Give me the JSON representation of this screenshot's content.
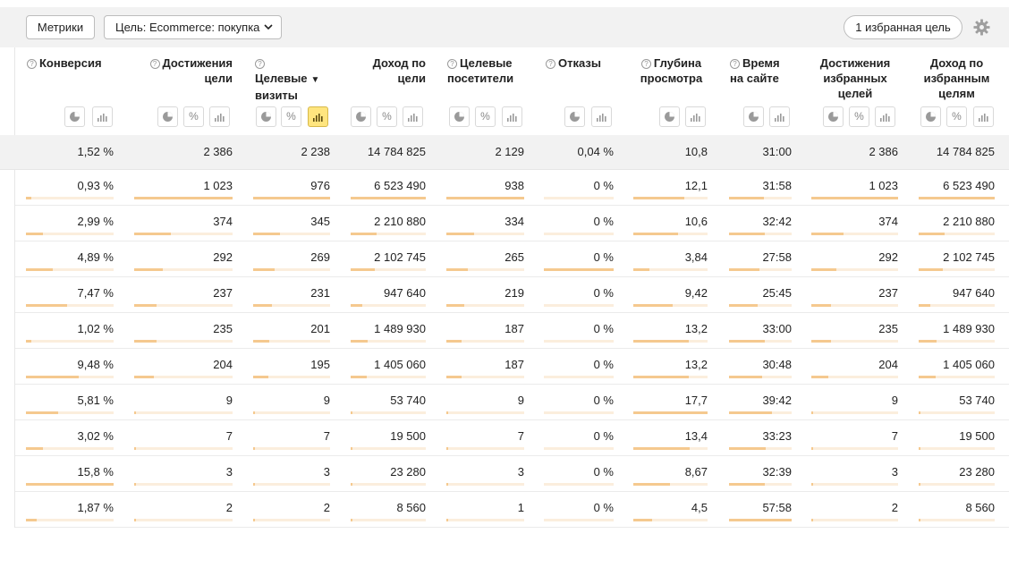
{
  "toolbar": {
    "metrics_label": "Метрики",
    "goal_label": "Цель: Ecommerce: покупка",
    "favorite_goals_label": "1 избранная цель"
  },
  "columns": [
    {
      "key": "conv",
      "lines": [
        "Конверсия"
      ],
      "help": true,
      "icons": [
        "pie",
        "bars"
      ]
    },
    {
      "key": "goal_reach",
      "lines": [
        "Достижения",
        "цели"
      ],
      "help": true,
      "icons": [
        "pie",
        "pct",
        "bars"
      ]
    },
    {
      "key": "target_visits",
      "lines": [
        "Целевые",
        "визиты"
      ],
      "help": true,
      "sorted": true,
      "icons": [
        "pie",
        "pct",
        "bars-active"
      ]
    },
    {
      "key": "goal_revenue",
      "lines": [
        "Доход по",
        "цели"
      ],
      "help": false,
      "icons": [
        "pie",
        "pct",
        "bars"
      ]
    },
    {
      "key": "target_visitors",
      "lines": [
        "Целевые",
        "посетители"
      ],
      "help": true,
      "icons": [
        "pie",
        "pct",
        "bars"
      ]
    },
    {
      "key": "bounces",
      "lines": [
        "Отказы"
      ],
      "help": true,
      "icons": [
        "pie",
        "bars"
      ]
    },
    {
      "key": "depth",
      "lines": [
        "Глубина",
        "просмотра"
      ],
      "help": true,
      "icons": [
        "pie",
        "bars"
      ]
    },
    {
      "key": "time",
      "lines": [
        "Время",
        "на сайте"
      ],
      "help": true,
      "icons": [
        "pie",
        "bars"
      ]
    },
    {
      "key": "fav_reach",
      "lines": [
        "Достижения",
        "избранных",
        "целей"
      ],
      "help": false,
      "icons": [
        "pie",
        "pct",
        "bars"
      ]
    },
    {
      "key": "fav_revenue",
      "lines": [
        "Доход по",
        "избранным",
        "целям"
      ],
      "help": false,
      "icons": [
        "pie",
        "pct",
        "bars"
      ]
    }
  ],
  "totals": [
    "1,52 %",
    "2 386",
    "2 238",
    "14 784 825",
    "2 129",
    "0,04 %",
    "10,8",
    "31:00",
    "2 386",
    "14 784 825"
  ],
  "rows": [
    {
      "cells": [
        "0,93 %",
        "1 023",
        "976",
        "6 523 490",
        "938",
        "0 %",
        "12,1",
        "31:58",
        "1 023",
        "6 523 490"
      ],
      "fills": [
        0.06,
        1.0,
        1.0,
        1.0,
        1.0,
        0.0,
        0.69,
        0.55,
        1.0,
        1.0
      ]
    },
    {
      "cells": [
        "2,99 %",
        "374",
        "345",
        "2 210 880",
        "334",
        "0 %",
        "10,6",
        "32:42",
        "374",
        "2 210 880"
      ],
      "fills": [
        0.19,
        0.37,
        0.35,
        0.34,
        0.36,
        0.0,
        0.6,
        0.57,
        0.37,
        0.34
      ]
    },
    {
      "cells": [
        "4,89 %",
        "292",
        "269",
        "2 102 745",
        "265",
        "0 %",
        "3,84",
        "27:58",
        "292",
        "2 102 745"
      ],
      "fills": [
        0.31,
        0.29,
        0.28,
        0.32,
        0.28,
        1.0,
        0.22,
        0.49,
        0.29,
        0.32
      ]
    },
    {
      "cells": [
        "7,47 %",
        "237",
        "231",
        "947 640",
        "219",
        "0 %",
        "9,42",
        "25:45",
        "237",
        "947 640"
      ],
      "fills": [
        0.47,
        0.23,
        0.24,
        0.15,
        0.23,
        0.0,
        0.53,
        0.45,
        0.23,
        0.15
      ]
    },
    {
      "cells": [
        "1,02 %",
        "235",
        "201",
        "1 489 930",
        "187",
        "0 %",
        "13,2",
        "33:00",
        "235",
        "1 489 930"
      ],
      "fills": [
        0.06,
        0.23,
        0.21,
        0.23,
        0.2,
        0.0,
        0.75,
        0.57,
        0.23,
        0.23
      ]
    },
    {
      "cells": [
        "9,48 %",
        "204",
        "195",
        "1 405 060",
        "187",
        "0 %",
        "13,2",
        "30:48",
        "204",
        "1 405 060"
      ],
      "fills": [
        0.6,
        0.2,
        0.2,
        0.22,
        0.2,
        0.0,
        0.75,
        0.53,
        0.2,
        0.22
      ]
    },
    {
      "cells": [
        "5,81 %",
        "9",
        "9",
        "53 740",
        "9",
        "0 %",
        "17,7",
        "39:42",
        "9",
        "53 740"
      ],
      "fills": [
        0.37,
        0.01,
        0.01,
        0.01,
        0.01,
        0.0,
        1.0,
        0.69,
        0.01,
        0.01
      ]
    },
    {
      "cells": [
        "3,02 %",
        "7",
        "7",
        "19 500",
        "7",
        "0 %",
        "13,4",
        "33:23",
        "7",
        "19 500"
      ],
      "fills": [
        0.19,
        0.01,
        0.01,
        0.01,
        0.01,
        0.0,
        0.76,
        0.58,
        0.01,
        0.01
      ]
    },
    {
      "cells": [
        "15,8 %",
        "3",
        "3",
        "23 280",
        "3",
        "0 %",
        "8,67",
        "32:39",
        "3",
        "23 280"
      ],
      "fills": [
        1.0,
        0.01,
        0.01,
        0.01,
        0.01,
        0.0,
        0.49,
        0.57,
        0.01,
        0.01
      ]
    },
    {
      "cells": [
        "1,87 %",
        "2",
        "2",
        "8 560",
        "1",
        "0 %",
        "4,5",
        "57:58",
        "2",
        "8 560"
      ],
      "fills": [
        0.12,
        0.01,
        0.01,
        0.01,
        0.01,
        0.0,
        0.25,
        1.0,
        0.01,
        0.01
      ]
    }
  ],
  "colors": {
    "bar_fill": "#f5c98f",
    "bar_track": "#fbeedd",
    "active_icon": "#ffe57f",
    "toolbar_bg": "#f2f2f2"
  }
}
